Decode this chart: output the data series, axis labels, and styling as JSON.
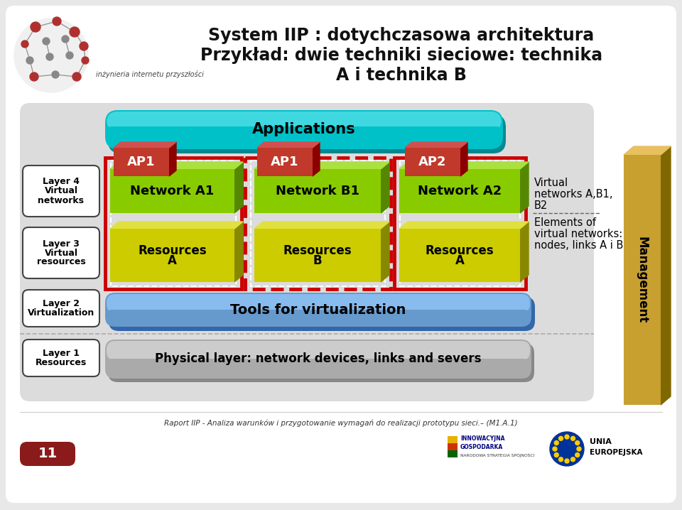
{
  "title_line1": "System IIP : dotychczasowa architektura",
  "title_line2": "Przykład: dwie techniki sieciowe: technika",
  "title_line3": "A i technika B",
  "bg_color": "#e8e8e8",
  "main_bg": "#ffffff",
  "teal_color": "#00c0c8",
  "teal_light": "#40d8e0",
  "red_color": "#c0392b",
  "red_dark": "#8b0000",
  "red_top": "#d05050",
  "green_color": "#88cc00",
  "green_dark": "#558800",
  "green_top": "#aae040",
  "yellow_color": "#cccc00",
  "yellow_dark": "#888800",
  "yellow_top": "#e0e040",
  "blue_layer_color": "#6699cc",
  "blue_layer_light": "#88bbee",
  "gray_layer_color": "#aaaaaa",
  "gray_layer_light": "#cccccc",
  "gold_color": "#c8a030",
  "gold_dark": "#806800",
  "gold_light": "#e8c060",
  "footer_text": "Raport IIP - Analiza warunków i przygotowanie wymagań do realizacji prototypu sieci.– (M1.A.1)",
  "slide_number": "11",
  "slide_number_bg": "#8b1a1a",
  "right_label": "Management"
}
